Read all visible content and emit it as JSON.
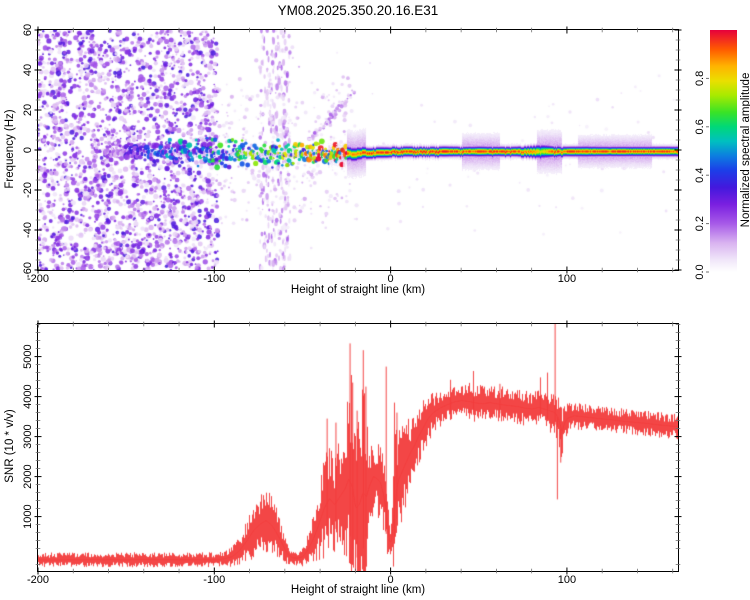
{
  "figure": {
    "title": "YM08.2025.350.20.16.E31",
    "background": "#ffffff"
  },
  "style": {
    "axis_color": "#000000",
    "minor_tick_color": "#707070",
    "trace_red": "#f23c3c"
  },
  "chart_data": [
    {
      "type": "heatmap",
      "name": "doppler-spectrogram",
      "xlabel": "Height of straight line (km)",
      "ylabel": "Frequency (Hz)",
      "xlim": [
        -200,
        163
      ],
      "ylim": [
        -60,
        60
      ],
      "x_major_ticks": [
        {
          "value": -200,
          "label": "-200"
        },
        {
          "value": -100,
          "label": "-100"
        },
        {
          "value": 0,
          "label": "0"
        },
        {
          "value": 100,
          "label": "100"
        }
      ],
      "x_minor_step": 20,
      "y_major_ticks": [
        {
          "value": 60,
          "label": "60"
        },
        {
          "value": 40,
          "label": "40"
        },
        {
          "value": 20,
          "label": "20"
        },
        {
          "value": 0,
          "label": "0"
        },
        {
          "value": -20,
          "label": "-20"
        },
        {
          "value": -40,
          "label": "-40"
        },
        {
          "value": -60,
          "label": "-60"
        }
      ],
      "y_minor_step": 5,
      "colorbar": {
        "label": "Normalized spectral amplitude",
        "range": [
          0,
          1
        ],
        "tick_values": [
          0,
          0.2,
          0.4,
          0.6,
          0.8
        ],
        "tick_labels": [
          "0.0",
          "0.2",
          "0.4",
          "0.6",
          "0.8"
        ],
        "stops": [
          [
            0,
            "#ffffff"
          ],
          [
            0.05,
            "#f0e6f9"
          ],
          [
            0.12,
            "#d9b3f0"
          ],
          [
            0.2,
            "#a75ae8"
          ],
          [
            0.28,
            "#7a1fe0"
          ],
          [
            0.35,
            "#4318dd"
          ],
          [
            0.42,
            "#1c3ee8"
          ],
          [
            0.48,
            "#0c7ee0"
          ],
          [
            0.54,
            "#00c0c0"
          ],
          [
            0.6,
            "#00d878"
          ],
          [
            0.66,
            "#3ae326"
          ],
          [
            0.73,
            "#a8ea00"
          ],
          [
            0.79,
            "#eadf00"
          ],
          [
            0.85,
            "#ffb400"
          ],
          [
            0.92,
            "#ff5a00"
          ],
          [
            1,
            "#e6003c"
          ]
        ]
      },
      "features": {
        "noise_region": {
          "x_range": [
            -200,
            -98
          ],
          "freq_range": [
            -60,
            60
          ],
          "max_amplitude": 0.33
        },
        "interference_band": {
          "x_range": [
            -74,
            -57
          ],
          "freq_range": [
            -60,
            60
          ],
          "max_amplitude": 0.17
        },
        "diagonal_streak": {
          "from": [
            -48,
            3
          ],
          "to": [
            -20,
            30
          ],
          "max_amplitude": 0.18
        },
        "echo_trace_points": [
          [
            -162,
            -1,
            0.18,
            2.5
          ],
          [
            -155,
            -1,
            0.22,
            3
          ],
          [
            -148,
            -0.5,
            0.28,
            3
          ],
          [
            -142,
            -1,
            0.32,
            3.5
          ],
          [
            -136,
            -1.5,
            0.35,
            3.5
          ],
          [
            -130,
            -1,
            0.4,
            4
          ],
          [
            -124,
            -1,
            0.42,
            4
          ],
          [
            -118,
            -1.5,
            0.45,
            4
          ],
          [
            -112,
            -1,
            0.45,
            4.5
          ],
          [
            -106,
            -1,
            0.48,
            4.5
          ],
          [
            -100,
            -1,
            0.5,
            4.5
          ],
          [
            -94,
            -1.5,
            0.5,
            4.5
          ],
          [
            -88,
            -1,
            0.52,
            4.5
          ],
          [
            -82,
            -1.5,
            0.55,
            4.5
          ],
          [
            -76,
            -2,
            0.55,
            5
          ],
          [
            -70,
            -2,
            0.55,
            5
          ],
          [
            -64,
            -2,
            0.6,
            4.5
          ],
          [
            -58,
            -2.5,
            0.62,
            4.5
          ],
          [
            -52,
            -2,
            0.65,
            4
          ],
          [
            -46,
            -1.5,
            0.7,
            4
          ],
          [
            -40,
            -1,
            0.78,
            3.5
          ],
          [
            -36,
            -2.5,
            0.72,
            3.5
          ],
          [
            -32,
            -1.5,
            0.85,
            3
          ],
          [
            -28,
            -2.5,
            0.9,
            3
          ],
          [
            -24,
            -1.5,
            0.92,
            2.5
          ],
          [
            -20,
            -2,
            0.88,
            2.5
          ],
          [
            -16,
            -1,
            0.95,
            2.2
          ],
          [
            -12,
            -1.5,
            0.97,
            2
          ],
          [
            -8,
            -1,
            0.95,
            2
          ],
          [
            -4,
            -1,
            0.97,
            2
          ],
          [
            0,
            -0.8,
            0.98,
            1.9
          ],
          [
            10,
            -0.7,
            0.96,
            1.9
          ],
          [
            20,
            -0.7,
            0.97,
            1.8
          ],
          [
            30,
            -0.6,
            0.98,
            1.9
          ],
          [
            40,
            -0.6,
            0.97,
            1.8
          ],
          [
            50,
            -0.6,
            0.96,
            1.9
          ],
          [
            60,
            -0.6,
            0.97,
            1.8
          ],
          [
            70,
            -0.6,
            0.96,
            1.8
          ],
          [
            80,
            -0.6,
            0.9,
            2.2
          ],
          [
            85,
            -0.6,
            0.8,
            2.6
          ],
          [
            88,
            -0.6,
            0.85,
            2.4
          ],
          [
            92,
            -0.6,
            0.95,
            2
          ],
          [
            100,
            -0.6,
            0.97,
            1.8
          ],
          [
            110,
            -0.6,
            0.95,
            1.9
          ],
          [
            120,
            -0.5,
            0.96,
            1.8
          ],
          [
            130,
            -0.5,
            0.97,
            1.8
          ],
          [
            140,
            -0.5,
            0.96,
            1.8
          ],
          [
            150,
            -0.5,
            0.97,
            1.8
          ],
          [
            163,
            -0.5,
            0.96,
            1.8
          ]
        ],
        "halo_bumps": [
          {
            "x_range": [
              -36,
              -14
            ],
            "extra_hz": 4.5
          },
          {
            "x_range": [
              40,
              62
            ],
            "extra_hz": 3
          },
          {
            "x_range": [
              83,
              97
            ],
            "extra_hz": 4
          },
          {
            "x_range": [
              106,
              148
            ],
            "extra_hz": 2.5
          }
        ]
      }
    },
    {
      "type": "line",
      "name": "snr-profile",
      "xlabel": "Height of straight line (km)",
      "ylabel": "SNR (10 * v/v)",
      "series_color": "#f23c3c",
      "xlim": [
        -200,
        163
      ],
      "ylim": [
        -360,
        5815
      ],
      "x_major_ticks": [
        {
          "value": -200,
          "label": "-200"
        },
        {
          "value": -100,
          "label": "-100"
        },
        {
          "value": 0,
          "label": "0"
        },
        {
          "value": 100,
          "label": "100"
        }
      ],
      "x_minor_step": 20,
      "y_major_ticks": [
        {
          "value": 1000,
          "label": "1000"
        },
        {
          "value": 2000,
          "label": "2000"
        },
        {
          "value": 3000,
          "label": "3000"
        },
        {
          "value": 4000,
          "label": "4000"
        },
        {
          "value": 5000,
          "label": "5000"
        }
      ],
      "y_minor_step": 200,
      "envelope": [
        [
          -200,
          -80,
          190
        ],
        [
          -190,
          -85,
          185
        ],
        [
          -180,
          -80,
          190
        ],
        [
          -170,
          -80,
          185
        ],
        [
          -160,
          -78,
          190
        ],
        [
          -150,
          -82,
          185
        ],
        [
          -140,
          -75,
          195
        ],
        [
          -130,
          -80,
          185
        ],
        [
          -120,
          -82,
          180
        ],
        [
          -110,
          -80,
          185
        ],
        [
          -100,
          -75,
          190
        ],
        [
          -95,
          -60,
          200
        ],
        [
          -90,
          0,
          260
        ],
        [
          -86,
          150,
          350
        ],
        [
          -82,
          380,
          520
        ],
        [
          -78,
          650,
          700
        ],
        [
          -74,
          820,
          800
        ],
        [
          -71,
          900,
          850
        ],
        [
          -68,
          800,
          800
        ],
        [
          -65,
          600,
          650
        ],
        [
          -62,
          350,
          450
        ],
        [
          -59,
          80,
          300
        ],
        [
          -56,
          -30,
          220
        ],
        [
          -53,
          -40,
          200
        ],
        [
          -50,
          0,
          250
        ],
        [
          -47,
          180,
          400
        ],
        [
          -44,
          450,
          650
        ],
        [
          -41,
          800,
          950
        ],
        [
          -38,
          1200,
          1250
        ],
        [
          -35,
          1450,
          1350
        ],
        [
          -32,
          1300,
          1300
        ],
        [
          -29,
          1500,
          1450
        ],
        [
          -26,
          1700,
          1700
        ],
        [
          -24,
          1950,
          2350
        ],
        [
          -22,
          1750,
          3050
        ],
        [
          -20,
          1200,
          2400
        ],
        [
          -18,
          1300,
          2700
        ],
        [
          -16,
          1600,
          3000
        ],
        [
          -14,
          1500,
          2000
        ],
        [
          -12,
          1800,
          1100
        ],
        [
          -10,
          2000,
          950
        ],
        [
          -8,
          1950,
          1000
        ],
        [
          -6,
          1850,
          950
        ],
        [
          -4,
          1500,
          1000
        ],
        [
          -2,
          800,
          750
        ],
        [
          -1,
          420,
          420
        ],
        [
          0,
          330,
          330
        ],
        [
          1,
          700,
          950
        ],
        [
          2,
          1200,
          1750
        ],
        [
          3,
          1600,
          1850
        ],
        [
          4,
          1900,
          1550
        ],
        [
          5,
          2000,
          1350
        ],
        [
          7,
          2200,
          1150
        ],
        [
          9,
          2400,
          1050
        ],
        [
          11,
          2600,
          950
        ],
        [
          13,
          2750,
          850
        ],
        [
          15,
          2950,
          800
        ],
        [
          18,
          3200,
          700
        ],
        [
          21,
          3450,
          600
        ],
        [
          24,
          3600,
          520
        ],
        [
          28,
          3720,
          470
        ],
        [
          32,
          3800,
          470
        ],
        [
          36,
          3870,
          480
        ],
        [
          40,
          3900,
          460
        ],
        [
          44,
          3880,
          470
        ],
        [
          48,
          3840,
          480
        ],
        [
          52,
          3820,
          460
        ],
        [
          56,
          3850,
          470
        ],
        [
          60,
          3820,
          440
        ],
        [
          64,
          3790,
          460
        ],
        [
          68,
          3770,
          440
        ],
        [
          72,
          3750,
          450
        ],
        [
          76,
          3710,
          440
        ],
        [
          80,
          3690,
          440
        ],
        [
          84,
          3730,
          480
        ],
        [
          88,
          3670,
          520
        ],
        [
          91,
          3630,
          580
        ],
        [
          93,
          3600,
          540
        ],
        [
          95,
          3450,
          650
        ],
        [
          97,
          3100,
          700
        ],
        [
          98,
          3300,
          470
        ],
        [
          100,
          3460,
          400
        ],
        [
          104,
          3520,
          360
        ],
        [
          108,
          3500,
          340
        ],
        [
          112,
          3480,
          330
        ],
        [
          116,
          3460,
          330
        ],
        [
          120,
          3440,
          320
        ],
        [
          125,
          3420,
          320
        ],
        [
          130,
          3390,
          320
        ],
        [
          135,
          3370,
          320
        ],
        [
          140,
          3350,
          320
        ],
        [
          145,
          3330,
          320
        ],
        [
          150,
          3300,
          320
        ],
        [
          155,
          3280,
          320
        ],
        [
          160,
          3260,
          320
        ],
        [
          163,
          3250,
          320
        ]
      ],
      "spikes": [
        [
          -36,
          3450
        ],
        [
          -31,
          3350
        ],
        [
          -23,
          5330
        ],
        [
          -21.5,
          4350
        ],
        [
          -19,
          3650
        ],
        [
          -15.5,
          5160
        ],
        [
          -14,
          4250
        ],
        [
          -2.5,
          4750
        ],
        [
          2.2,
          3850
        ],
        [
          3.6,
          3600
        ],
        [
          34,
          4420
        ],
        [
          47,
          4640
        ],
        [
          62,
          4320
        ],
        [
          85,
          4480
        ],
        [
          89,
          4600
        ],
        [
          93.3,
          5815
        ]
      ],
      "dips": [
        [
          94.6,
          1430
        ],
        [
          96.5,
          2350
        ]
      ]
    }
  ]
}
